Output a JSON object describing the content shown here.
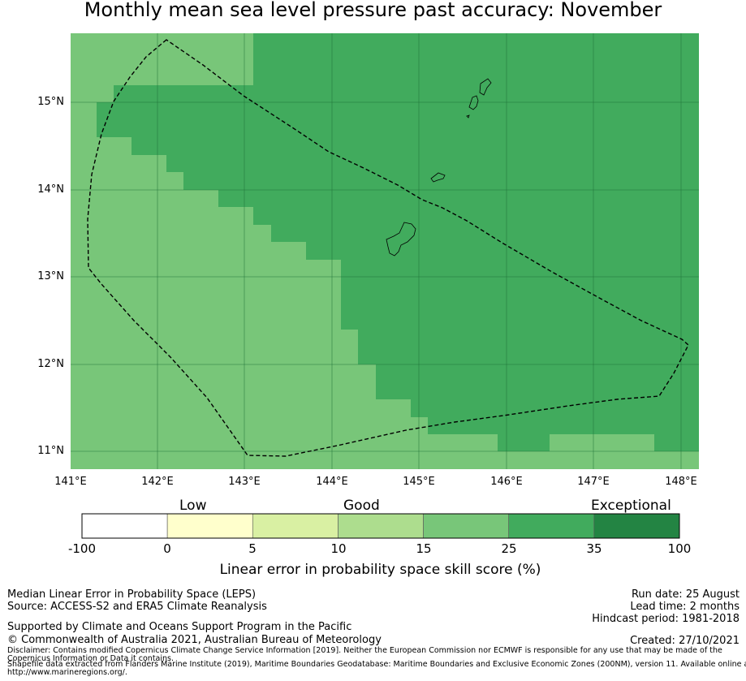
{
  "title": "Monthly mean sea level pressure past accuracy: November",
  "map": {
    "lat_ticks": [
      "15°N",
      "14°N",
      "13°N",
      "12°N",
      "11°N"
    ],
    "lon_ticks": [
      "141°E",
      "142°E",
      "143°E",
      "144°E",
      "145°E",
      "146°E",
      "147°E",
      "148°E"
    ],
    "colors": {
      "light_green": "#78c679",
      "mid_green": "#41ab5d",
      "boundary": "#000000"
    }
  },
  "colorbar": {
    "categories": [
      "Low",
      "Good",
      "Exceptional"
    ],
    "ticks": [
      "-100",
      "0",
      "5",
      "10",
      "15",
      "25",
      "35",
      "100"
    ],
    "colors": [
      "#ffffff",
      "#ffffcc",
      "#d9f0a3",
      "#addd8e",
      "#78c679",
      "#41ab5d",
      "#238443"
    ],
    "label": "Linear error in probability space skill score (%)"
  },
  "footer": {
    "left": {
      "line1": "Median Linear Error in Probability Space (LEPS)",
      "line2": "Source: ACCESS-S2 and ERA5 Climate Reanalysis",
      "support": "Supported by Climate and Oceans Support Program in the Pacific",
      "copyright": "© Commonwealth of Australia 2021, Australian Bureau of Meteorology",
      "disclaimer1": "Disclaimer: Contains modified Copernicus Climate Change Service Information [2019]. Neither the European Commission nor ECMWF is responsible for any use that may be made of the",
      "disclaimer2": "Copernicus Information or Data it contains.",
      "shapefile1": "Shapefile data extracted from Flanders Marine Institute (2019), Maritime Boundaries Geodatabase: Maritime Boundaries and Exclusive Economic Zones (200NM), version 11. Available online at",
      "shapefile2": "http://www.marineregions.org/."
    },
    "right": {
      "run_date": "Run date: 25 August",
      "lead_time": "Lead time: 2 months",
      "hindcast": "Hindcast period: 1981-2018",
      "created": "Created: 27/10/2021"
    }
  }
}
